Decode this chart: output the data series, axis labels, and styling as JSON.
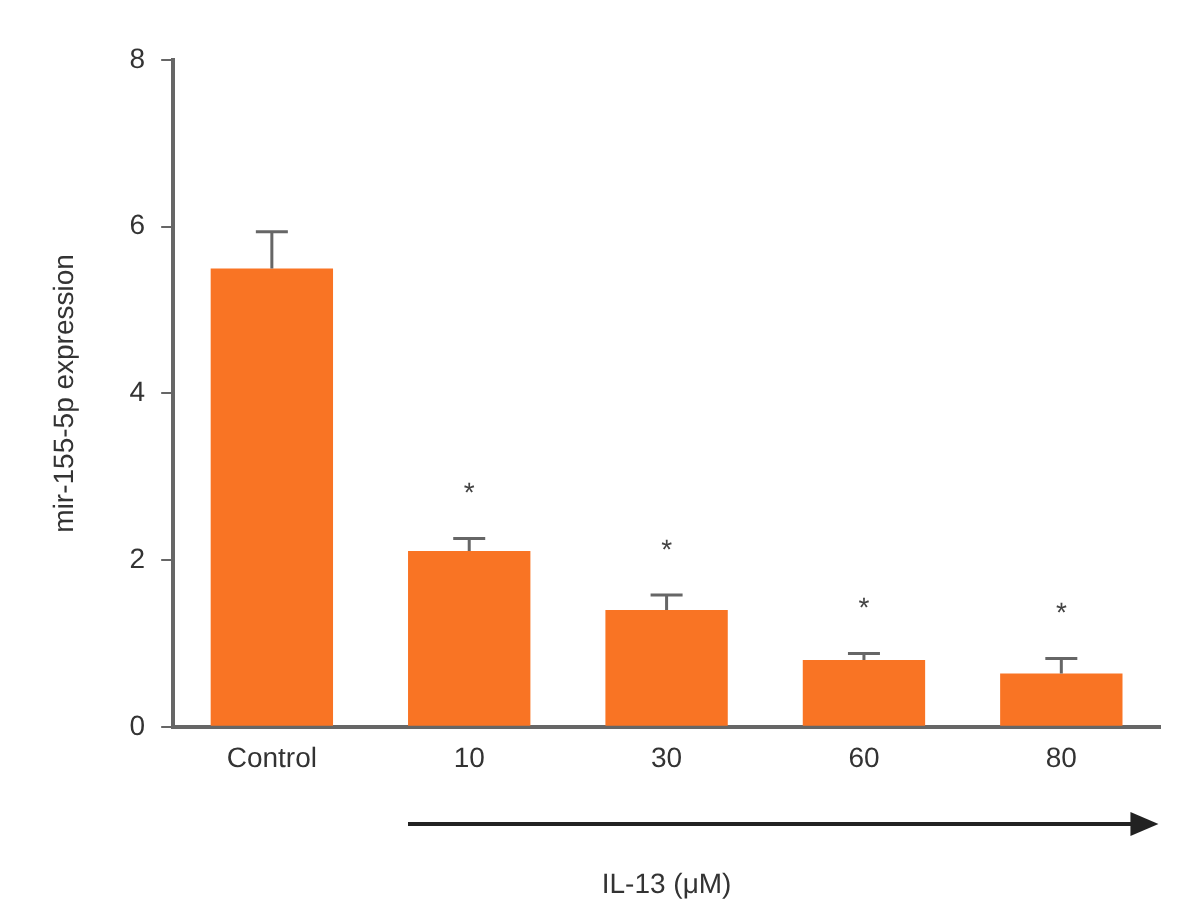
{
  "chart_data": {
    "type": "bar",
    "xlabel": "IL-13 (μM)",
    "ylabel": "mir-155-5p expression",
    "categories": [
      "Control",
      "10",
      "30",
      "60",
      "80"
    ],
    "values": [
      5.5,
      2.11,
      1.4,
      0.8,
      0.64
    ],
    "errors": [
      [
        5.5,
        5.94
      ],
      [
        2.11,
        2.26
      ],
      [
        1.4,
        1.58
      ],
      [
        0.8,
        0.88
      ],
      [
        0.64,
        0.82
      ]
    ],
    "color": "#f97424",
    "ylim": [
      0,
      8
    ],
    "yticks": [
      0,
      2,
      4,
      6,
      8
    ],
    "grid": false,
    "legend": false,
    "annotations": [
      "*",
      "*",
      "*",
      "*"
    ]
  }
}
